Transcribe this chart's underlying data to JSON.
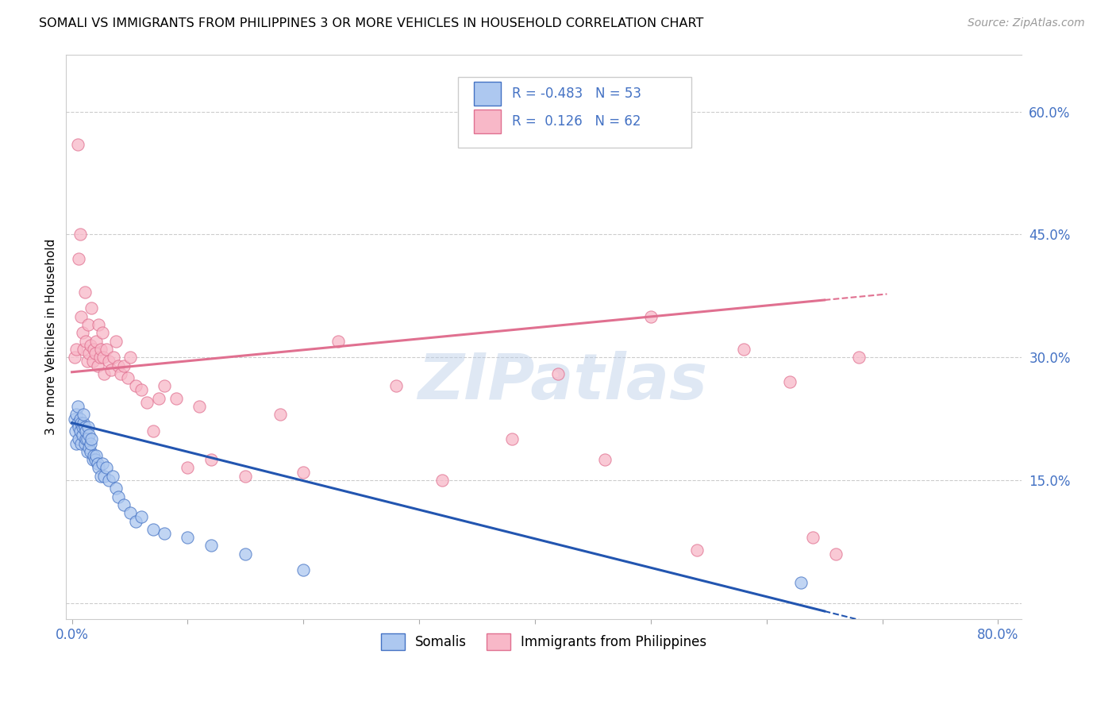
{
  "title": "SOMALI VS IMMIGRANTS FROM PHILIPPINES 3 OR MORE VEHICLES IN HOUSEHOLD CORRELATION CHART",
  "source": "Source: ZipAtlas.com",
  "ylabel": "3 or more Vehicles in Household",
  "xmin": 0.0,
  "xmax": 0.8,
  "ymin": -0.02,
  "ymax": 0.67,
  "somali_R": -0.483,
  "somali_N": 53,
  "philippines_R": 0.126,
  "philippines_N": 62,
  "somali_color": "#adc8f0",
  "somali_edge_color": "#4472c4",
  "somali_line_color": "#2255b0",
  "philippines_color": "#f8b8c8",
  "philippines_edge_color": "#e07090",
  "philippines_line_color": "#e07090",
  "watermark": "ZIPatlas",
  "legend_label_somali": "Somalis",
  "legend_label_philippines": "Immigrants from Philippines",
  "somali_scatter_x": [
    0.002,
    0.003,
    0.004,
    0.004,
    0.005,
    0.005,
    0.006,
    0.006,
    0.007,
    0.007,
    0.008,
    0.008,
    0.009,
    0.009,
    0.01,
    0.01,
    0.011,
    0.011,
    0.012,
    0.012,
    0.013,
    0.013,
    0.014,
    0.015,
    0.015,
    0.016,
    0.016,
    0.017,
    0.018,
    0.019,
    0.02,
    0.021,
    0.022,
    0.023,
    0.025,
    0.026,
    0.028,
    0.03,
    0.032,
    0.035,
    0.038,
    0.04,
    0.045,
    0.05,
    0.055,
    0.06,
    0.07,
    0.08,
    0.1,
    0.12,
    0.15,
    0.2,
    0.63
  ],
  "somali_scatter_y": [
    0.225,
    0.21,
    0.23,
    0.195,
    0.22,
    0.24,
    0.215,
    0.2,
    0.21,
    0.225,
    0.22,
    0.195,
    0.205,
    0.215,
    0.22,
    0.23,
    0.215,
    0.195,
    0.2,
    0.21,
    0.185,
    0.2,
    0.215,
    0.19,
    0.205,
    0.185,
    0.195,
    0.2,
    0.175,
    0.18,
    0.175,
    0.18,
    0.17,
    0.165,
    0.155,
    0.17,
    0.155,
    0.165,
    0.15,
    0.155,
    0.14,
    0.13,
    0.12,
    0.11,
    0.1,
    0.105,
    0.09,
    0.085,
    0.08,
    0.07,
    0.06,
    0.04,
    0.025
  ],
  "philippines_scatter_x": [
    0.002,
    0.004,
    0.005,
    0.006,
    0.007,
    0.008,
    0.009,
    0.01,
    0.011,
    0.012,
    0.013,
    0.014,
    0.015,
    0.016,
    0.017,
    0.018,
    0.019,
    0.02,
    0.021,
    0.022,
    0.023,
    0.024,
    0.025,
    0.026,
    0.027,
    0.028,
    0.03,
    0.032,
    0.034,
    0.036,
    0.038,
    0.04,
    0.042,
    0.045,
    0.048,
    0.05,
    0.055,
    0.06,
    0.065,
    0.07,
    0.075,
    0.08,
    0.09,
    0.1,
    0.11,
    0.12,
    0.15,
    0.18,
    0.2,
    0.23,
    0.28,
    0.32,
    0.38,
    0.42,
    0.46,
    0.5,
    0.54,
    0.58,
    0.62,
    0.64,
    0.66,
    0.68
  ],
  "philippines_scatter_y": [
    0.3,
    0.31,
    0.56,
    0.42,
    0.45,
    0.35,
    0.33,
    0.31,
    0.38,
    0.32,
    0.295,
    0.34,
    0.305,
    0.315,
    0.36,
    0.295,
    0.31,
    0.305,
    0.32,
    0.29,
    0.34,
    0.3,
    0.31,
    0.33,
    0.3,
    0.28,
    0.31,
    0.295,
    0.285,
    0.3,
    0.32,
    0.29,
    0.28,
    0.29,
    0.275,
    0.3,
    0.265,
    0.26,
    0.245,
    0.21,
    0.25,
    0.265,
    0.25,
    0.165,
    0.24,
    0.175,
    0.155,
    0.23,
    0.16,
    0.32,
    0.265,
    0.15,
    0.2,
    0.28,
    0.175,
    0.35,
    0.065,
    0.31,
    0.27,
    0.08,
    0.06,
    0.3
  ],
  "somali_line_start_x": 0.0,
  "somali_line_start_y": 0.22,
  "somali_line_end_x": 0.65,
  "somali_line_end_y": -0.01,
  "philippines_line_start_x": 0.0,
  "philippines_line_start_y": 0.282,
  "philippines_line_end_x": 0.65,
  "philippines_line_end_y": 0.37
}
